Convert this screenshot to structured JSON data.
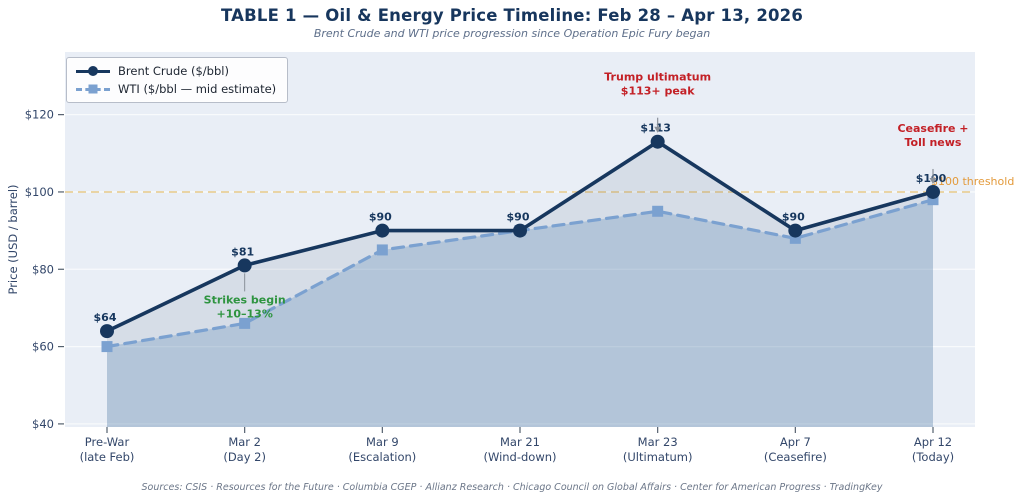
{
  "title": "TABLE 1 — Oil & Energy Price Timeline: Feb 28 – Apr 13, 2026",
  "subtitle": "Brent Crude and WTI price progression since Operation Epic Fury began",
  "sources": "Sources: CSIS · Resources for the Future · Columbia CGEP · Allianz Research · Chicago Council on Global Affairs · Center for American Progress · TradingKey",
  "colors": {
    "title": "#17365d",
    "plot_bg": "#e9eef6",
    "grid": "#f8fafc",
    "brent": "#17375e",
    "wti": "#7ba1d0",
    "wti_fill": "rgba(91,135,184,0.28)",
    "brent_fill": "rgba(23,55,94,0.09)",
    "tick_text": "#33476a",
    "annotation_green": "#2e9440",
    "annotation_red": "#c32026",
    "threshold_text": "#e39a3b",
    "threshold_line": "#e9d4a5",
    "connector": "#8a9099"
  },
  "chart_data": {
    "type": "line",
    "categories": [
      [
        "Pre-War",
        "(late Feb)"
      ],
      [
        "Mar 2",
        "(Day 2)"
      ],
      [
        "Mar 9",
        "(Escalation)"
      ],
      [
        "Mar 21",
        "(Wind-down)"
      ],
      [
        "Mar 23",
        "(Ultimatum)"
      ],
      [
        "Apr 7",
        "(Ceasefire)"
      ],
      [
        "Apr 12",
        "(Today)"
      ]
    ],
    "series": [
      {
        "name": "Brent Crude ($/bbl)",
        "values": [
          64,
          81,
          90,
          90,
          113,
          90,
          100
        ],
        "line": "solid",
        "marker": "circle"
      },
      {
        "name": "WTI ($/bbl — mid estimate)",
        "values": [
          60,
          66,
          85,
          90,
          95,
          88,
          98
        ],
        "line": "dashed",
        "marker": "square"
      }
    ],
    "data_labels": [
      "$64",
      "$81",
      "$90",
      "$90",
      "$113",
      "$90",
      "$100"
    ],
    "ylabel": "Price (USD / barrel)",
    "yticks": [
      40,
      60,
      80,
      100,
      120
    ],
    "ytick_labels": [
      "$40",
      "$60",
      "$80",
      "$100",
      "$120"
    ],
    "ylim": [
      39.2,
      136.2
    ],
    "grid": true,
    "legend_position": "top-left",
    "threshold": {
      "value": 100,
      "label": "$100 threshold"
    },
    "annotations": [
      {
        "lines": [
          "Strikes begin",
          "+10–13%"
        ],
        "color_role": "annotation_green",
        "cat": 1,
        "value": 81,
        "placement": "below",
        "pointer": "line"
      },
      {
        "lines": [
          "Trump ultimatum",
          "$113+ peak"
        ],
        "color_role": "annotation_red",
        "cat": 4,
        "value": 113,
        "placement": "above",
        "pointer": "arrow"
      },
      {
        "lines": [
          "Ceasefire +",
          "Toll news"
        ],
        "color_role": "annotation_red",
        "cat": 6,
        "value": 100,
        "placement": "above",
        "pointer": "arrow"
      }
    ]
  }
}
